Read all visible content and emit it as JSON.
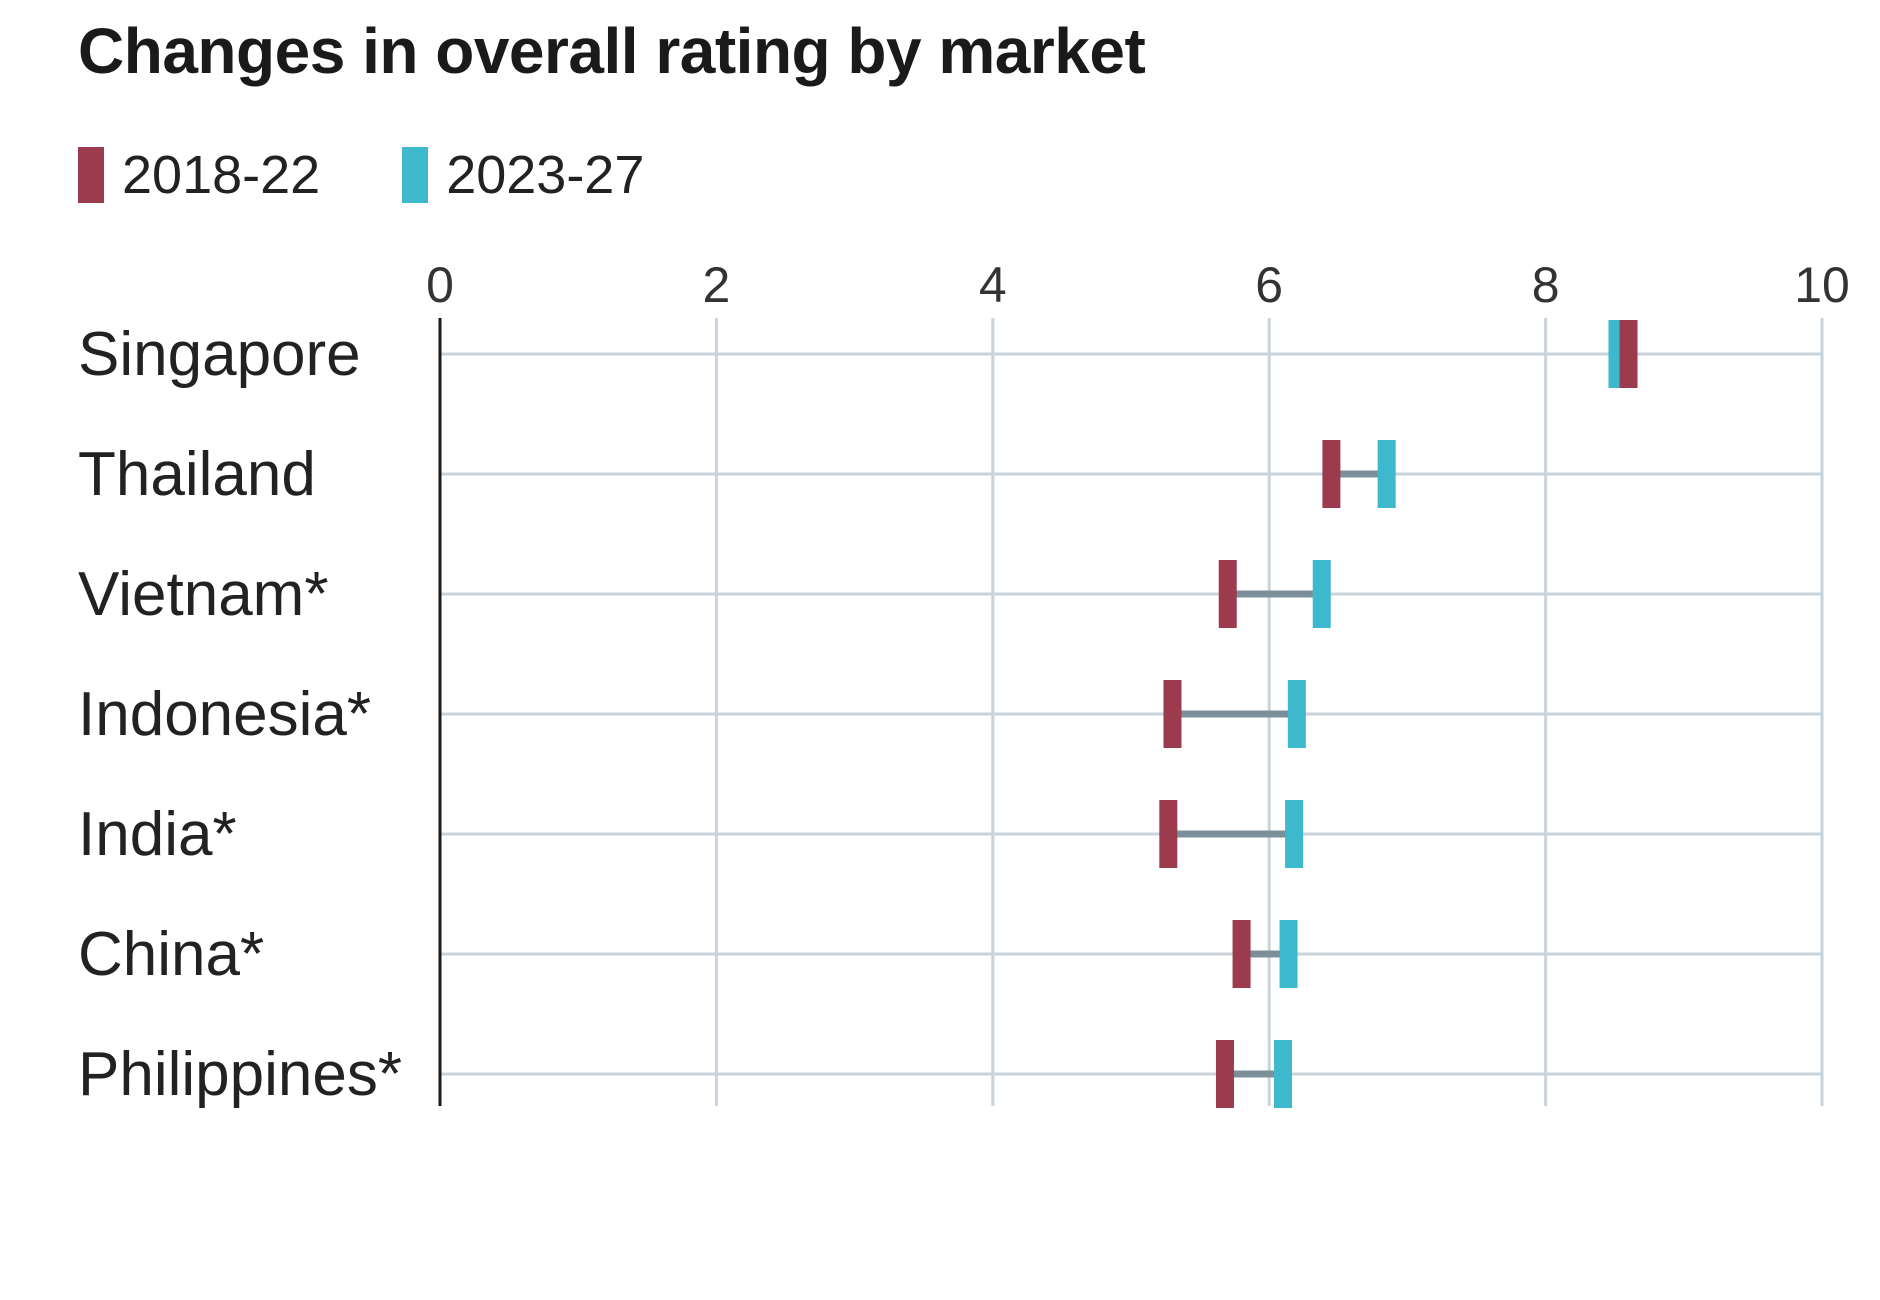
{
  "title": "Changes in overall rating by market",
  "chart_data": {
    "type": "dumbbell",
    "title": "Changes in overall rating by market",
    "xlim": [
      0,
      10
    ],
    "x_ticks": [
      "0",
      "2",
      "4",
      "6",
      "8",
      "10"
    ],
    "grid": true,
    "legend_placement": "top-left",
    "categories": [
      "Singapore",
      "Thailand",
      "Vietnam*",
      "Indonesia*",
      "India*",
      "China*",
      "Philippines*"
    ],
    "series": [
      {
        "name": "2018-22",
        "color": "#9c3a4e",
        "values": [
          8.6,
          6.45,
          5.7,
          5.3,
          5.27,
          5.8,
          5.68
        ]
      },
      {
        "name": "2023-27",
        "color": "#3db8cc",
        "values": [
          8.52,
          6.85,
          6.38,
          6.2,
          6.18,
          6.14,
          6.1
        ]
      }
    ],
    "connector_color": "#7b8f99",
    "grid_color": "#c9d3dc"
  }
}
